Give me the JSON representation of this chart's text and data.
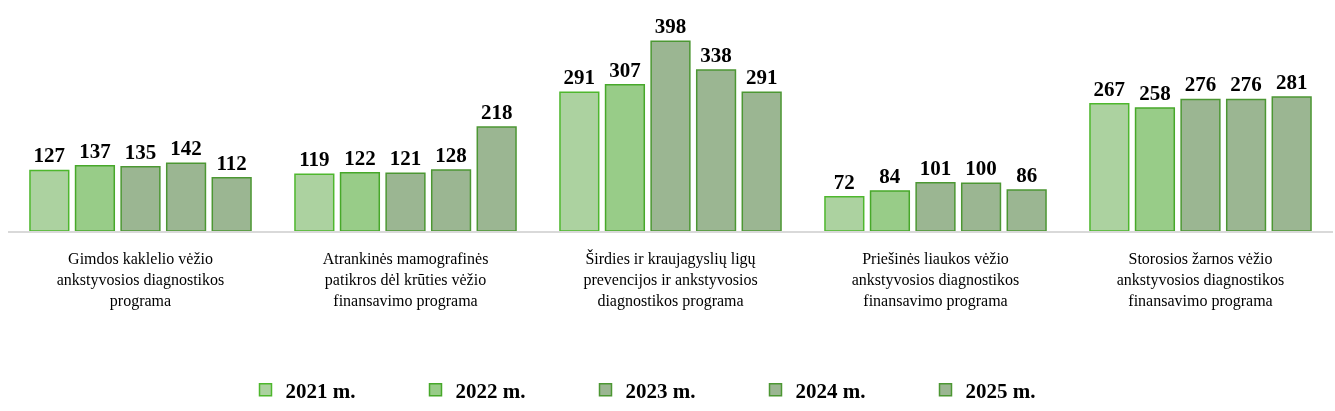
{
  "chart_data": {
    "type": "bar",
    "categories": [
      "Gimdos kaklelio vėžio ankstyvosios diagnostikos programa",
      "Atrankinės mamografinės patikros dėl krūties vėžio finansavimo programa",
      "Širdies ir kraujagyslių ligų prevencijos ir ankstyvosios diagnostikos programa",
      "Priešinės liaukos vėžio ankstyvosios diagnostikos finansavimo programa",
      "Storosios žarnos vėžio ankstyvosios diagnostikos finansavimo programa"
    ],
    "series": [
      {
        "name": "2021 m.",
        "color": "#acd2a0",
        "values": [
          127,
          119,
          291,
          72,
          267
        ]
      },
      {
        "name": "2022 m.",
        "color": "#98cc88",
        "values": [
          137,
          122,
          307,
          84,
          258
        ]
      },
      {
        "name": "2023 m.",
        "color": "#9bb692",
        "values": [
          135,
          121,
          398,
          101,
          276
        ]
      },
      {
        "name": "2024 m.",
        "color": "#9bb692",
        "values": [
          142,
          128,
          338,
          100,
          276
        ]
      },
      {
        "name": "2025 m.",
        "color": "#9bb692",
        "values": [
          112,
          218,
          291,
          86,
          281
        ]
      }
    ],
    "data_labels": true,
    "legend": "bottom"
  }
}
